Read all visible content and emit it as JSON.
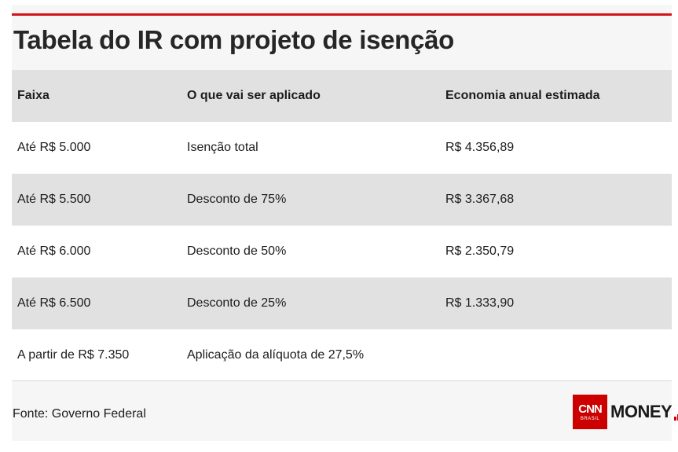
{
  "title": "Tabela do IR com projeto de isenção",
  "table": {
    "headers": [
      "Faixa",
      "O que vai ser aplicado",
      "Economia anual estimada"
    ],
    "rows": [
      [
        "Até R$ 5.000",
        "Isenção total",
        "R$ 4.356,89"
      ],
      [
        "Até R$ 5.500",
        "Desconto de 75%",
        "R$ 3.367,68"
      ],
      [
        "Até R$ 6.000",
        "Desconto de 50%",
        "R$ 2.350,79"
      ],
      [
        "Até R$ 6.500",
        "Desconto de 25%",
        "R$ 1.333,90"
      ],
      [
        "A partir de R$ 7.350",
        "Aplicação da alíquota de 27,5%",
        ""
      ]
    ]
  },
  "footer": {
    "source": "Fonte: Governo Federal",
    "logo": {
      "cnn": "CNN",
      "brasil": "BRASIL",
      "money": "MONEY",
      "icon": "bar-chart-icon",
      "brand_color": "#cc0000"
    }
  },
  "colors": {
    "accent": "#d3131b",
    "header_bg": "#e2e1e2",
    "shaded_row": "#e2e1e2",
    "plain_row": "#ffffff",
    "card_bg": "#f6f6f6"
  }
}
